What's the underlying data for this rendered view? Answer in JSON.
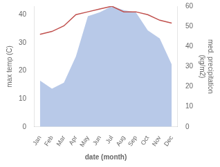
{
  "chart_data": {
    "type": "line",
    "xlabel": "date (month)",
    "ylabel": "max temp (C)",
    "y2label": "med. precipitation\n(kg/m2)",
    "categories": [
      "Jan",
      "Feb",
      "Mar",
      "Apr",
      "May",
      "Jun",
      "Jul",
      "Aug",
      "Sep",
      "Oct",
      "Nov",
      "Dec"
    ],
    "series": [
      {
        "type": "area",
        "color": "#b8c9e8",
        "axis": "y2",
        "values": [
          23,
          19,
          22,
          35,
          55,
          57,
          60,
          58,
          57,
          48,
          44,
          31
        ]
      },
      {
        "type": "line",
        "color": "#c0504d",
        "values": [
          33,
          34,
          36,
          40,
          41,
          42,
          43,
          41,
          41,
          40,
          38,
          37
        ]
      }
    ],
    "ylim": [
      0,
      43
    ],
    "yticks": [
      0,
      10,
      20,
      30,
      40
    ],
    "y2lim": [
      0,
      60
    ],
    "y2ticks": [
      0,
      10,
      20,
      30,
      40,
      50,
      60
    ],
    "grid": false
  }
}
